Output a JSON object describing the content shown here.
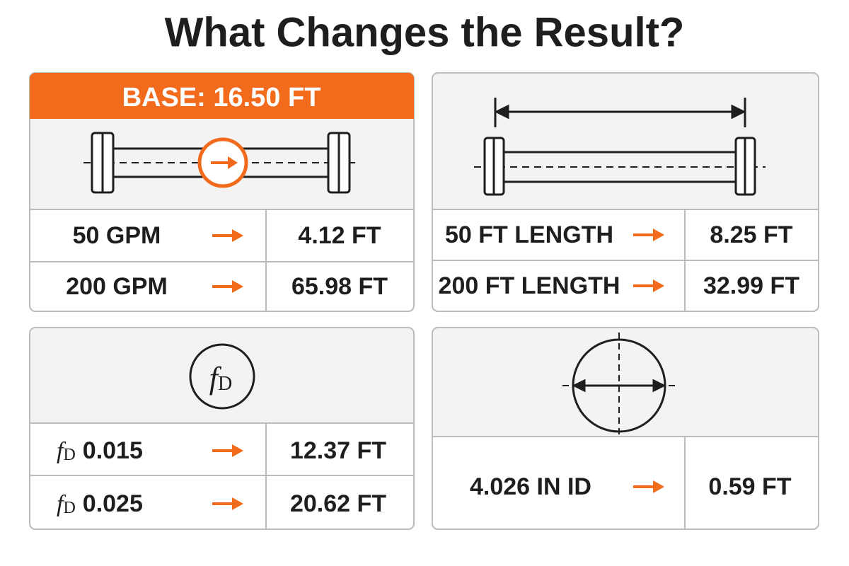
{
  "title": "What Changes the Result?",
  "panels": [
    {
      "header": "BASE: 16.50 FT",
      "rows": [
        {
          "label": "50 GPM",
          "result": "4.12 FT"
        },
        {
          "label": "200 GPM",
          "result": "65.98 FT"
        }
      ]
    },
    {
      "rows": [
        {
          "label": "50 FT LENGTH",
          "result": "8.25 FT"
        },
        {
          "label": "200 FT LENGTH",
          "result": "32.99 FT"
        }
      ]
    },
    {
      "icon": {
        "symbol": "f",
        "subscript": "D"
      },
      "rows": [
        {
          "symbol": "f",
          "subscript": "D",
          "label": "0.015",
          "result": "12.37 FT"
        },
        {
          "symbol": "f",
          "subscript": "D",
          "label": "0.025",
          "result": "20.62 FT"
        }
      ]
    },
    {
      "rows": [
        {
          "label": "4.026 IN ID",
          "result": "0.59 FT"
        }
      ]
    }
  ]
}
